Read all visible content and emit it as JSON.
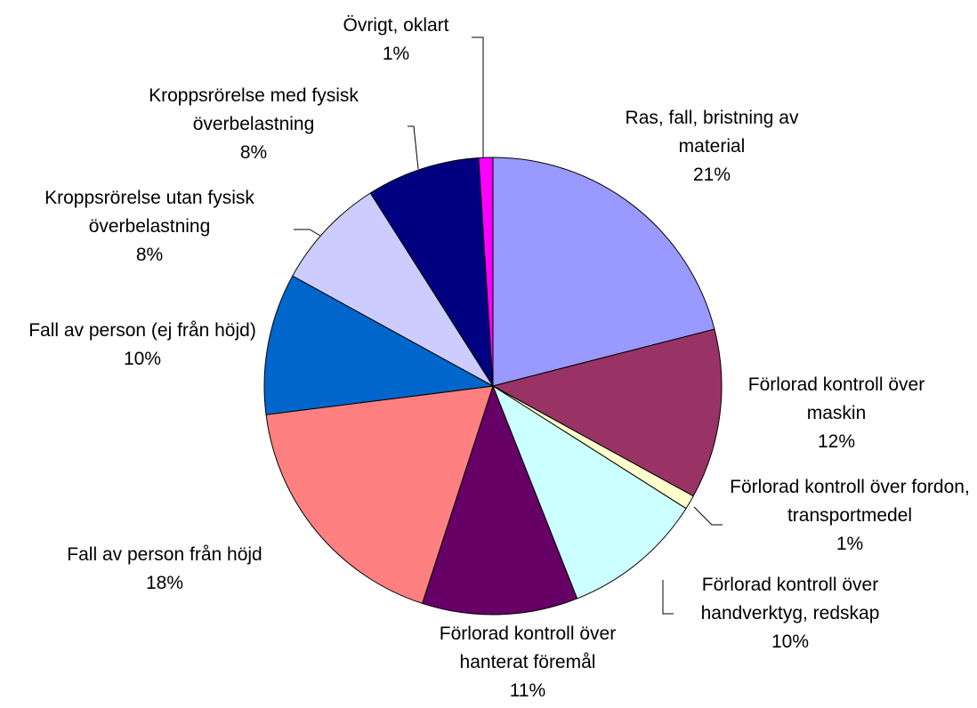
{
  "chart_data": {
    "type": "pie",
    "categories": [
      "Ras, fall, bristning av material",
      "Förlorad kontroll över maskin",
      "Förlorad kontroll över fordon, transportmedel",
      "Förlorad kontroll över handverktyg, redskap",
      "Förlorad kontroll över hanterat föremål",
      "Fall av person från höjd",
      "Fall av person (ej från höjd)",
      "Kroppsrörelse utan fysisk överbelastning",
      "Kroppsrörelse med fysisk överbelastning",
      "Övrigt, oklart"
    ],
    "values": [
      21,
      12,
      1,
      10,
      11,
      18,
      10,
      8,
      8,
      1
    ],
    "value_labels": [
      "21%",
      "12%",
      "1%",
      "10%",
      "11%",
      "18%",
      "10%",
      "8%",
      "8%",
      "1%"
    ],
    "colors": [
      "#9999ff",
      "#993366",
      "#ffffcc",
      "#ccffff",
      "#660066",
      "#ff8080",
      "#0066cc",
      "#ccccff",
      "#000080",
      "#ff00ff"
    ]
  }
}
